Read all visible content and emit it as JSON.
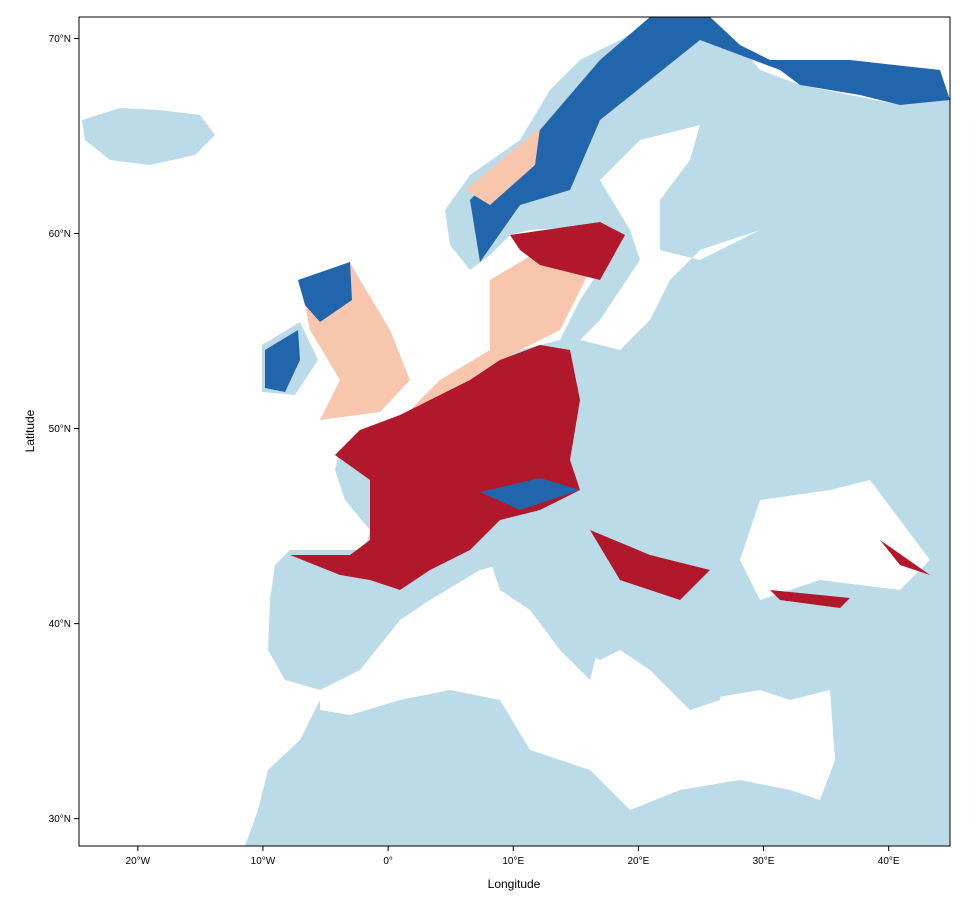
{
  "map": {
    "xlabel": "Longitude",
    "ylabel": "Latitude",
    "xlim": [
      -24.7,
      44.9
    ],
    "ylim": [
      28.6,
      71.1
    ],
    "xticks": [
      {
        "value": -20,
        "label": "20°W"
      },
      {
        "value": -10,
        "label": "10°W"
      },
      {
        "value": 0,
        "label": "0°"
      },
      {
        "value": 10,
        "label": "10°E"
      },
      {
        "value": 20,
        "label": "20°E"
      },
      {
        "value": 30,
        "label": "30°E"
      },
      {
        "value": 40,
        "label": "40°E"
      }
    ],
    "yticks": [
      {
        "value": 30,
        "label": "30°N"
      },
      {
        "value": 40,
        "label": "40°N"
      },
      {
        "value": 50,
        "label": "50°N"
      },
      {
        "value": 60,
        "label": "60°N"
      },
      {
        "value": 70,
        "label": "70°N"
      }
    ]
  }
}
